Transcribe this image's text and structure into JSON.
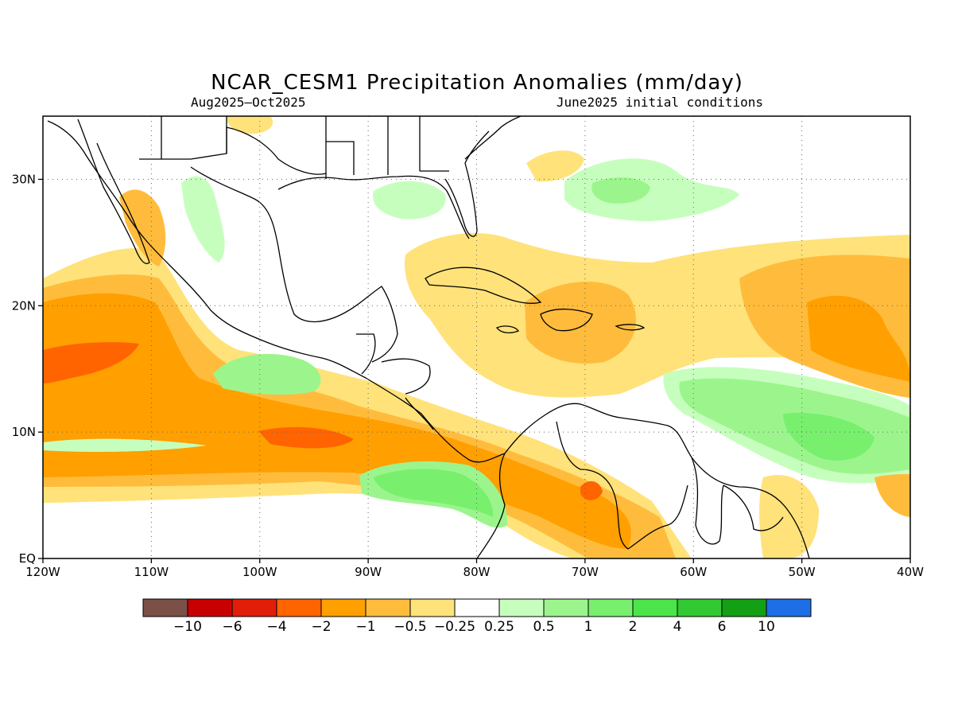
{
  "map": {
    "title": "NCAR_CESM1 Precipitation Anomalies (mm/day)",
    "valid_period": "Aug2025–Oct2025",
    "initial_conditions": "June2025 initial conditions",
    "lat_range": [
      0,
      35
    ],
    "lon_range": [
      -120,
      -40
    ],
    "lat_ticks": [
      {
        "value": 30,
        "label": "30N"
      },
      {
        "value": 20,
        "label": "20N"
      },
      {
        "value": 10,
        "label": "10N"
      },
      {
        "value": 0,
        "label": "EQ"
      }
    ],
    "lon_ticks": [
      {
        "value": -120,
        "label": "120W"
      },
      {
        "value": -110,
        "label": "110W"
      },
      {
        "value": -100,
        "label": "100W"
      },
      {
        "value": -90,
        "label": "90W"
      },
      {
        "value": -80,
        "label": "80W"
      },
      {
        "value": -70,
        "label": "70W"
      },
      {
        "value": -60,
        "label": "60W"
      },
      {
        "value": -50,
        "label": "50W"
      },
      {
        "value": -40,
        "label": "40W"
      }
    ],
    "grid": "dotted"
  },
  "colorbar": {
    "colors": [
      "#7a5048",
      "#c80000",
      "#e11e0a",
      "#ff6400",
      "#ff9f00",
      "#ffbc3c",
      "#ffe27a",
      "#ffffff",
      "#c6ffbd",
      "#9cf58c",
      "#78f06e",
      "#4be44b",
      "#32c832",
      "#14a014",
      "#1e6ee6"
    ],
    "labels": [
      "−10",
      "−6",
      "−4",
      "−2",
      "−1",
      "−0.5",
      "−0.25",
      "0.25",
      "0.5",
      "1",
      "2",
      "4",
      "6",
      "10"
    ]
  },
  "regions": [
    {
      "name": "east-pacific-dry-band",
      "category": "-1"
    },
    {
      "name": "east-pacific-dry-core",
      "category": "-2"
    },
    {
      "name": "caribbean-dry-region",
      "category": "-0.5"
    },
    {
      "name": "atlantic-dry-region",
      "category": "-0.5"
    },
    {
      "name": "atlantic-itcz-wet-band",
      "category": "1"
    },
    {
      "name": "atlantic-wet-core",
      "category": "2"
    },
    {
      "name": "colombia-pacific-wet-region",
      "category": "1"
    },
    {
      "name": "gulf-of-tehuantepec-wet-region",
      "category": "0.5"
    },
    {
      "name": "gulf-of-mexico-wet-region",
      "category": "0.5"
    },
    {
      "name": "western-atlantic-wet-region",
      "category": "0.5"
    }
  ]
}
